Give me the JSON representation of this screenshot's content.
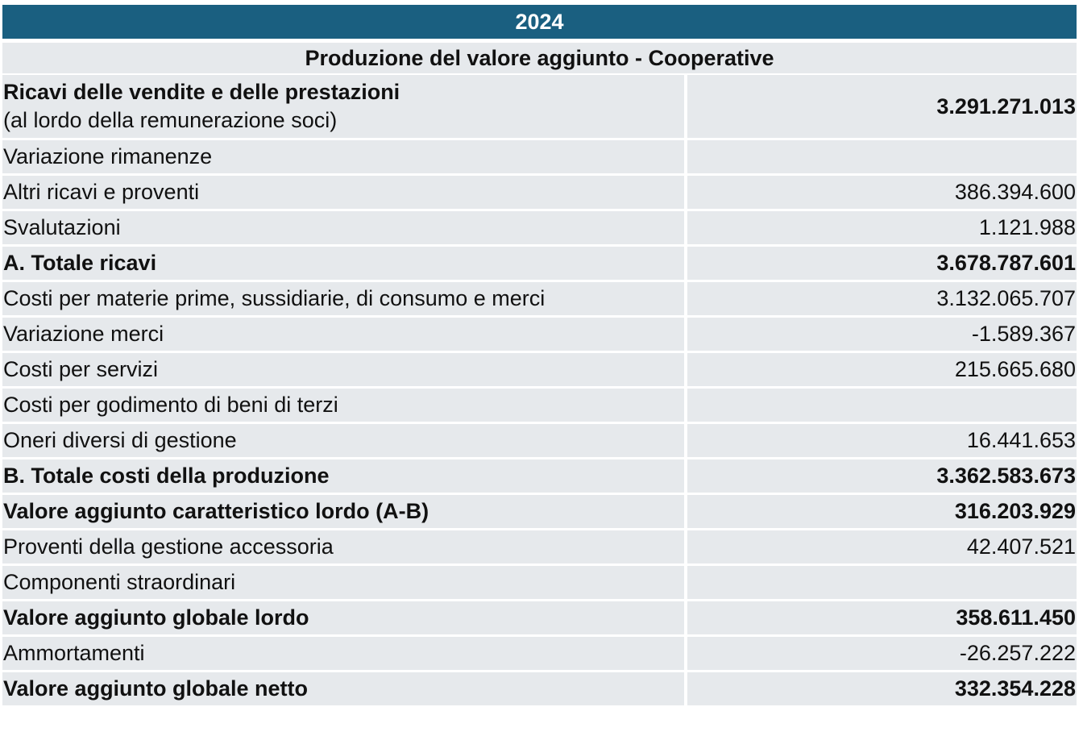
{
  "header": {
    "year": "2024",
    "title": "Produzione del valore aggiunto - Cooperative"
  },
  "rows": [
    {
      "label": "Ricavi delle vendite e delle prestazioni",
      "sublabel": "(al lordo della remunerazione soci)",
      "value": "3.291.271.013",
      "bold": true
    },
    {
      "label": "Variazione rimanenze",
      "value": "",
      "bold": false
    },
    {
      "label": "Altri ricavi e proventi",
      "value": "386.394.600",
      "bold": false
    },
    {
      "label": "Svalutazioni",
      "value": "1.121.988",
      "bold": false
    },
    {
      "label": "A. Totale ricavi",
      "value": "3.678.787.601",
      "bold": true
    },
    {
      "label": "Costi per materie prime, sussidiarie, di consumo e merci",
      "value": "3.132.065.707",
      "bold": false
    },
    {
      "label": "Variazione merci",
      "value": "-1.589.367",
      "bold": false
    },
    {
      "label": "Costi per servizi",
      "value": "215.665.680",
      "bold": false
    },
    {
      "label": "Costi per godimento di beni di terzi",
      "value": "",
      "bold": false
    },
    {
      "label": "Oneri diversi di gestione",
      "value": "16.441.653",
      "bold": false
    },
    {
      "label": "B. Totale costi della produzione",
      "value": "3.362.583.673",
      "bold": true
    },
    {
      "label": "Valore aggiunto caratteristico lordo (A-B)",
      "value": "316.203.929",
      "bold": true
    },
    {
      "label": "Proventi della gestione accessoria",
      "value": "42.407.521",
      "bold": false
    },
    {
      "label": "Componenti straordinari",
      "value": "",
      "bold": false
    },
    {
      "label": "Valore aggiunto globale lordo",
      "value": "358.611.450",
      "bold": true
    },
    {
      "label": "Ammortamenti",
      "value": "-26.257.222",
      "bold": false
    },
    {
      "label": "Valore aggiunto globale netto",
      "value": "332.354.228",
      "bold": true
    }
  ]
}
